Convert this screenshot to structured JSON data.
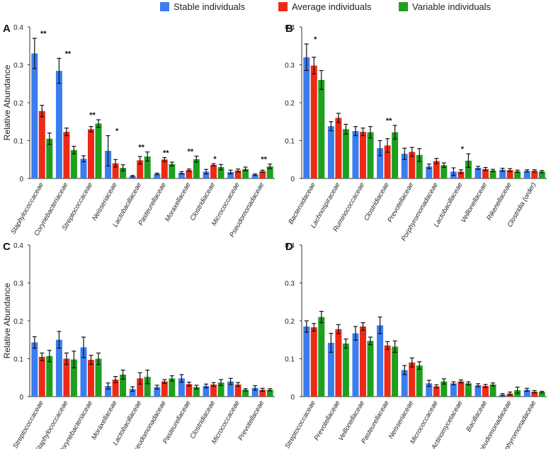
{
  "legend": [
    {
      "name": "Stable individuals",
      "color": "#3b7df0"
    },
    {
      "name": "Average individuals",
      "color": "#ee2a17"
    },
    {
      "name": "Variable individuals",
      "color": "#1ea01e"
    }
  ],
  "chart_data": [
    {
      "type": "bar",
      "panel_label": "A",
      "ylabel": "Relative Abundance",
      "ylim": [
        0,
        0.4
      ],
      "yticks": [
        "0",
        "0.1",
        "0.2",
        "0.3",
        "0.4"
      ],
      "categories": [
        "Staphylococcaceae",
        "Corynebacteriaceae",
        "Streptococcaceae",
        "Neisseriaceae",
        "Lactobacillaceae",
        "Pasteurellaceae",
        "Moraxellaceae",
        "Clostridiaceae",
        "Micrococcaceae",
        "Pseudomonadaceae"
      ],
      "series": [
        {
          "name": "Stable individuals",
          "values": [
            0.33,
            0.284,
            0.052,
            0.073,
            0.006,
            0.012,
            0.015,
            0.018,
            0.017,
            0.01
          ],
          "errors": [
            0.04,
            0.033,
            0.008,
            0.04,
            0.002,
            0.002,
            0.003,
            0.006,
            0.005,
            0.002
          ]
        },
        {
          "name": "Average individuals",
          "values": [
            0.178,
            0.123,
            0.13,
            0.04,
            0.048,
            0.05,
            0.022,
            0.036,
            0.021,
            0.019
          ],
          "errors": [
            0.015,
            0.01,
            0.007,
            0.01,
            0.01,
            0.005,
            0.003,
            0.003,
            0.004,
            0.003
          ]
        },
        {
          "name": "Variable individuals",
          "values": [
            0.105,
            0.075,
            0.145,
            0.028,
            0.058,
            0.038,
            0.051,
            0.03,
            0.025,
            0.032
          ],
          "errors": [
            0.015,
            0.01,
            0.01,
            0.008,
            0.012,
            0.005,
            0.008,
            0.007,
            0.005,
            0.006
          ]
        }
      ],
      "annotations": [
        "**",
        "**",
        "**",
        "*",
        "**",
        "**",
        "**",
        "*",
        "",
        "**"
      ]
    },
    {
      "type": "bar",
      "panel_label": "B",
      "ylim": [
        0,
        0.4
      ],
      "yticks": [
        "0",
        "0.1",
        "0.2",
        "0.3",
        "0.4"
      ],
      "categories": [
        "Bacteroidaceae",
        "Lachnospiraceae",
        "Ruminococcaceae",
        "Clostridiaceae",
        "Prevotellaceae",
        "Porphyromonadaceae",
        "Lactobacillaceae",
        "Veillonellaceae",
        "Rikenellaceae",
        "Clostridia (order)"
      ],
      "series": [
        {
          "name": "Stable individuals",
          "values": [
            0.32,
            0.138,
            0.125,
            0.08,
            0.065,
            0.032,
            0.018,
            0.028,
            0.023,
            0.02
          ],
          "errors": [
            0.035,
            0.012,
            0.012,
            0.02,
            0.015,
            0.006,
            0.01,
            0.004,
            0.004,
            0.003
          ]
        },
        {
          "name": "Average individuals",
          "values": [
            0.298,
            0.16,
            0.123,
            0.087,
            0.07,
            0.046,
            0.018,
            0.025,
            0.022,
            0.02
          ],
          "errors": [
            0.022,
            0.012,
            0.01,
            0.018,
            0.012,
            0.007,
            0.005,
            0.004,
            0.004,
            0.003
          ]
        },
        {
          "name": "Variable individuals",
          "values": [
            0.26,
            0.13,
            0.122,
            0.122,
            0.062,
            0.035,
            0.047,
            0.021,
            0.019,
            0.018
          ],
          "errors": [
            0.025,
            0.013,
            0.015,
            0.018,
            0.017,
            0.006,
            0.018,
            0.003,
            0.003,
            0.003
          ]
        }
      ],
      "annotations": [
        "*",
        "",
        "",
        "**",
        "",
        "",
        "*",
        "",
        "",
        ""
      ]
    },
    {
      "type": "bar",
      "panel_label": "C",
      "ylabel": "Relative Abundance",
      "ylim": [
        0,
        0.4
      ],
      "yticks": [
        "0",
        "0.1",
        "0.2",
        "0.3",
        "0.4"
      ],
      "categories": [
        "Streptococcaceae",
        "Staphylococcaceae",
        "Corynebacteriaceae",
        "Moraxellaceae",
        "Lactobacillaceae",
        "Pseudomonadaceae",
        "Pasteurellaceae",
        "Clostridiaceae",
        "Micrococcaceae",
        "Prevotellaceae"
      ],
      "series": [
        {
          "name": "Stable individuals",
          "values": [
            0.143,
            0.15,
            0.13,
            0.028,
            0.02,
            0.025,
            0.048,
            0.028,
            0.04,
            0.023
          ],
          "errors": [
            0.015,
            0.022,
            0.027,
            0.008,
            0.006,
            0.005,
            0.01,
            0.005,
            0.008,
            0.006
          ]
        },
        {
          "name": "Average individuals",
          "values": [
            0.105,
            0.1,
            0.097,
            0.045,
            0.048,
            0.04,
            0.033,
            0.032,
            0.032,
            0.018
          ],
          "errors": [
            0.01,
            0.015,
            0.012,
            0.008,
            0.015,
            0.005,
            0.005,
            0.005,
            0.005,
            0.004
          ]
        },
        {
          "name": "Variable individuals",
          "values": [
            0.107,
            0.098,
            0.1,
            0.058,
            0.052,
            0.048,
            0.025,
            0.037,
            0.018,
            0.018
          ],
          "errors": [
            0.015,
            0.022,
            0.015,
            0.012,
            0.018,
            0.007,
            0.005,
            0.008,
            0.003,
            0.003
          ]
        }
      ],
      "annotations": [
        "",
        "",
        "",
        "",
        "",
        "",
        "",
        "",
        "",
        ""
      ]
    },
    {
      "type": "bar",
      "panel_label": "D",
      "ylim": [
        0,
        0.4
      ],
      "yticks": [
        "0",
        "0.1",
        "0.2",
        "0.3",
        "0.4"
      ],
      "categories": [
        "Streptococcaceae",
        "Prevotellaceae",
        "Veillonellaceae",
        "Pasteurellaceae",
        "Neisseriaceae",
        "Micrococcaceae",
        "Actinomycetaceae",
        "Bacillaceae",
        "Pseudomonadaceae",
        "Porphyromonadaceae"
      ],
      "series": [
        {
          "name": "Stable individuals",
          "values": [
            0.185,
            0.142,
            0.167,
            0.188,
            0.07,
            0.035,
            0.035,
            0.03,
            0.005,
            0.018
          ],
          "errors": [
            0.015,
            0.025,
            0.018,
            0.022,
            0.012,
            0.008,
            0.004,
            0.004,
            0.003,
            0.004
          ]
        },
        {
          "name": "Average individuals",
          "values": [
            0.183,
            0.178,
            0.185,
            0.135,
            0.09,
            0.027,
            0.04,
            0.028,
            0.008,
            0.013
          ],
          "errors": [
            0.01,
            0.012,
            0.01,
            0.01,
            0.012,
            0.004,
            0.004,
            0.004,
            0.004,
            0.003
          ]
        },
        {
          "name": "Variable individuals",
          "values": [
            0.21,
            0.14,
            0.147,
            0.132,
            0.082,
            0.04,
            0.035,
            0.032,
            0.017,
            0.012
          ],
          "errors": [
            0.015,
            0.012,
            0.01,
            0.015,
            0.01,
            0.007,
            0.004,
            0.004,
            0.008,
            0.002
          ]
        }
      ],
      "annotations": [
        "",
        "",
        "",
        "",
        "",
        "",
        "",
        "",
        "",
        ""
      ]
    }
  ]
}
